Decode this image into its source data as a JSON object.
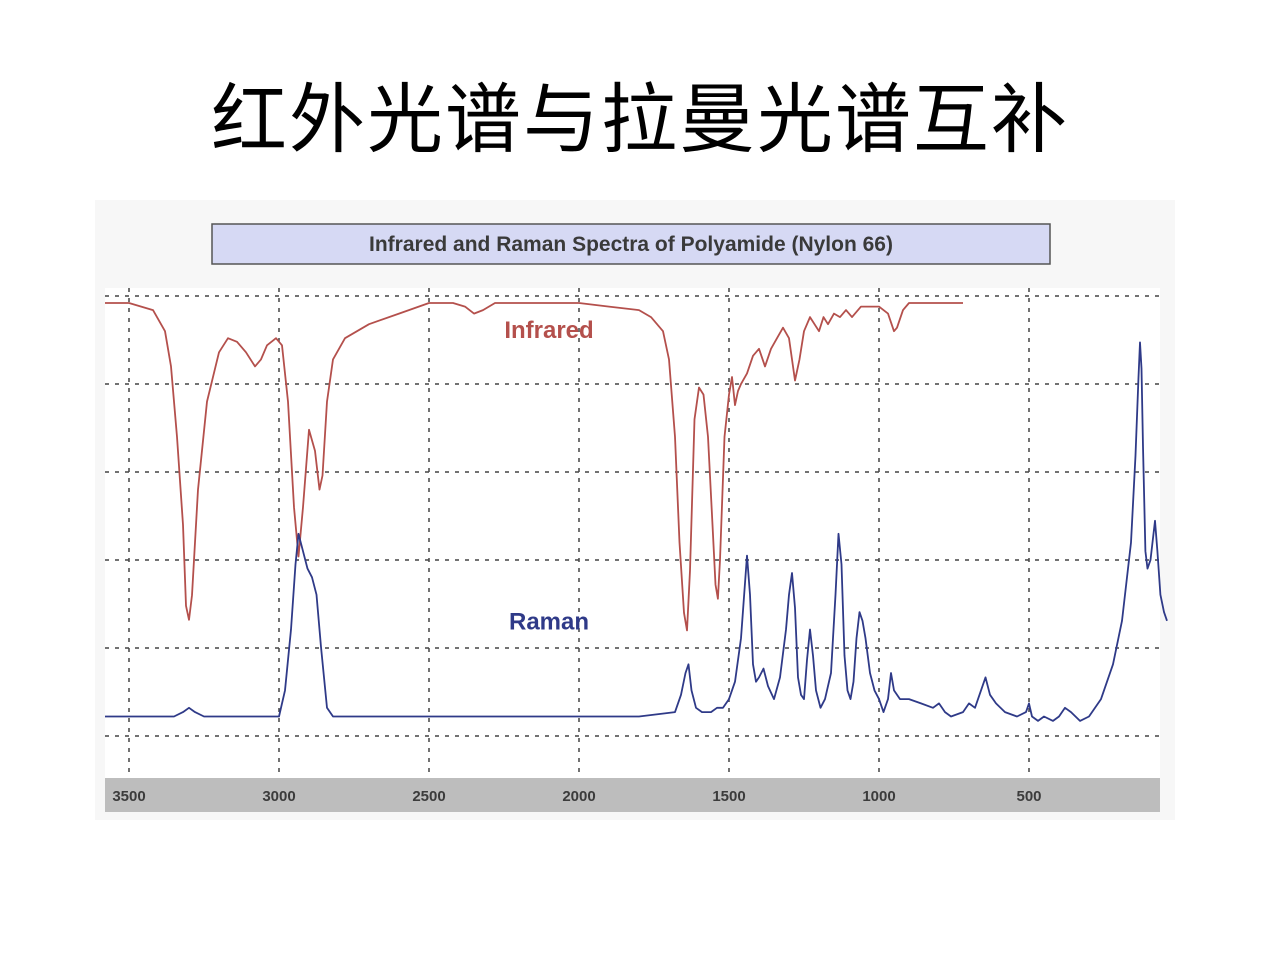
{
  "slide": {
    "title": "红外光谱与拉曼光谱互补"
  },
  "colors": {
    "infrared": "#b4504c",
    "raman": "#2f3a88",
    "title_box_fill": "#d6d9f4",
    "axis_bar": "#bdbdbd",
    "grid": "#444444"
  },
  "chart_data": {
    "type": "line",
    "title": "Infrared and Raman Spectra of Polyamide (Nylon 66)",
    "xlabel": "",
    "ylabel": "",
    "x_axis_reversed": true,
    "xlim": [
      3580,
      40
    ],
    "x_ticks": [
      3500,
      3000,
      2500,
      2000,
      1500,
      1000,
      500
    ],
    "x_tick_labels": [
      "3500",
      "3000",
      "2500",
      "2000",
      "1500",
      "1000",
      "500"
    ],
    "grid": true,
    "grid_style": "dashed",
    "y_relative_scale": [
      0,
      100
    ],
    "series": [
      {
        "name": "Infrared",
        "color": "#b4504c",
        "points": [
          [
            3580,
            98
          ],
          [
            3500,
            98
          ],
          [
            3420,
            96
          ],
          [
            3380,
            90
          ],
          [
            3360,
            80
          ],
          [
            3340,
            60
          ],
          [
            3320,
            35
          ],
          [
            3310,
            12
          ],
          [
            3300,
            8
          ],
          [
            3290,
            15
          ],
          [
            3270,
            45
          ],
          [
            3240,
            70
          ],
          [
            3200,
            84
          ],
          [
            3170,
            88
          ],
          [
            3140,
            87
          ],
          [
            3110,
            84
          ],
          [
            3080,
            80
          ],
          [
            3060,
            82
          ],
          [
            3040,
            86
          ],
          [
            3010,
            88
          ],
          [
            2990,
            86
          ],
          [
            2970,
            70
          ],
          [
            2950,
            40
          ],
          [
            2935,
            26
          ],
          [
            2920,
            40
          ],
          [
            2900,
            62
          ],
          [
            2880,
            56
          ],
          [
            2865,
            45
          ],
          [
            2855,
            49
          ],
          [
            2840,
            70
          ],
          [
            2820,
            82
          ],
          [
            2780,
            88
          ],
          [
            2700,
            92
          ],
          [
            2600,
            95
          ],
          [
            2500,
            98
          ],
          [
            2420,
            98
          ],
          [
            2380,
            97
          ],
          [
            2350,
            95
          ],
          [
            2320,
            96
          ],
          [
            2280,
            98
          ],
          [
            2100,
            98
          ],
          [
            2000,
            98
          ],
          [
            1900,
            97
          ],
          [
            1800,
            96
          ],
          [
            1760,
            94
          ],
          [
            1720,
            90
          ],
          [
            1700,
            82
          ],
          [
            1680,
            60
          ],
          [
            1665,
            30
          ],
          [
            1650,
            10
          ],
          [
            1640,
            5
          ],
          [
            1630,
            22
          ],
          [
            1615,
            65
          ],
          [
            1600,
            74
          ],
          [
            1585,
            72
          ],
          [
            1570,
            60
          ],
          [
            1555,
            35
          ],
          [
            1545,
            18
          ],
          [
            1537,
            14
          ],
          [
            1530,
            25
          ],
          [
            1515,
            60
          ],
          [
            1500,
            72
          ],
          [
            1490,
            77
          ],
          [
            1480,
            69
          ],
          [
            1470,
            73
          ],
          [
            1460,
            75
          ],
          [
            1440,
            78
          ],
          [
            1420,
            83
          ],
          [
            1400,
            85
          ],
          [
            1380,
            80
          ],
          [
            1360,
            85
          ],
          [
            1340,
            88
          ],
          [
            1320,
            91
          ],
          [
            1300,
            88
          ],
          [
            1280,
            76
          ],
          [
            1265,
            82
          ],
          [
            1250,
            90
          ],
          [
            1230,
            94
          ],
          [
            1200,
            90
          ],
          [
            1185,
            94
          ],
          [
            1170,
            92
          ],
          [
            1150,
            95
          ],
          [
            1130,
            94
          ],
          [
            1110,
            96
          ],
          [
            1090,
            94
          ],
          [
            1060,
            97
          ],
          [
            1000,
            97
          ],
          [
            970,
            95
          ],
          [
            950,
            90
          ],
          [
            940,
            91
          ],
          [
            920,
            96
          ],
          [
            900,
            98
          ],
          [
            800,
            98
          ],
          [
            720,
            98
          ]
        ]
      },
      {
        "name": "Raman",
        "color": "#2f3a88",
        "points": [
          [
            3580,
            10
          ],
          [
            3500,
            10
          ],
          [
            3400,
            10
          ],
          [
            3350,
            10
          ],
          [
            3320,
            11
          ],
          [
            3300,
            12
          ],
          [
            3280,
            11
          ],
          [
            3250,
            10
          ],
          [
            3100,
            10
          ],
          [
            3000,
            10
          ],
          [
            2980,
            16
          ],
          [
            2960,
            30
          ],
          [
            2945,
            45
          ],
          [
            2935,
            52
          ],
          [
            2920,
            48
          ],
          [
            2905,
            44
          ],
          [
            2890,
            42
          ],
          [
            2875,
            38
          ],
          [
            2860,
            26
          ],
          [
            2840,
            12
          ],
          [
            2820,
            10
          ],
          [
            2800,
            10
          ],
          [
            2600,
            10
          ],
          [
            2400,
            10
          ],
          [
            2200,
            10
          ],
          [
            2000,
            10
          ],
          [
            1800,
            10
          ],
          [
            1680,
            11
          ],
          [
            1660,
            15
          ],
          [
            1645,
            20
          ],
          [
            1635,
            22
          ],
          [
            1625,
            16
          ],
          [
            1610,
            12
          ],
          [
            1590,
            11
          ],
          [
            1560,
            11
          ],
          [
            1540,
            12
          ],
          [
            1520,
            12
          ],
          [
            1500,
            14
          ],
          [
            1480,
            18
          ],
          [
            1460,
            28
          ],
          [
            1440,
            47
          ],
          [
            1430,
            38
          ],
          [
            1420,
            22
          ],
          [
            1410,
            18
          ],
          [
            1400,
            19
          ],
          [
            1385,
            21
          ],
          [
            1370,
            17
          ],
          [
            1350,
            14
          ],
          [
            1330,
            19
          ],
          [
            1310,
            30
          ],
          [
            1300,
            38
          ],
          [
            1290,
            43
          ],
          [
            1280,
            35
          ],
          [
            1270,
            19
          ],
          [
            1260,
            15
          ],
          [
            1250,
            14
          ],
          [
            1240,
            23
          ],
          [
            1230,
            30
          ],
          [
            1220,
            24
          ],
          [
            1210,
            16
          ],
          [
            1195,
            12
          ],
          [
            1180,
            14
          ],
          [
            1160,
            20
          ],
          [
            1145,
            38
          ],
          [
            1135,
            52
          ],
          [
            1125,
            45
          ],
          [
            1115,
            24
          ],
          [
            1105,
            16
          ],
          [
            1095,
            14
          ],
          [
            1085,
            18
          ],
          [
            1075,
            28
          ],
          [
            1065,
            34
          ],
          [
            1055,
            32
          ],
          [
            1045,
            28
          ],
          [
            1030,
            20
          ],
          [
            1015,
            16
          ],
          [
            1000,
            14
          ],
          [
            985,
            11
          ],
          [
            970,
            14
          ],
          [
            960,
            20
          ],
          [
            950,
            16
          ],
          [
            930,
            14
          ],
          [
            900,
            14
          ],
          [
            860,
            13
          ],
          [
            820,
            12
          ],
          [
            800,
            13
          ],
          [
            780,
            11
          ],
          [
            760,
            10
          ],
          [
            720,
            11
          ],
          [
            700,
            13
          ],
          [
            680,
            12
          ],
          [
            660,
            16
          ],
          [
            645,
            19
          ],
          [
            630,
            15
          ],
          [
            610,
            13
          ],
          [
            580,
            11
          ],
          [
            540,
            10
          ],
          [
            510,
            11
          ],
          [
            500,
            13
          ],
          [
            490,
            10
          ],
          [
            470,
            9
          ],
          [
            450,
            10
          ],
          [
            420,
            9
          ],
          [
            400,
            10
          ],
          [
            380,
            12
          ],
          [
            360,
            11
          ],
          [
            330,
            9
          ],
          [
            300,
            10
          ],
          [
            260,
            14
          ],
          [
            220,
            22
          ],
          [
            190,
            32
          ],
          [
            160,
            50
          ],
          [
            145,
            70
          ],
          [
            135,
            88
          ],
          [
            130,
            96
          ],
          [
            125,
            90
          ],
          [
            120,
            72
          ],
          [
            112,
            48
          ],
          [
            105,
            44
          ],
          [
            95,
            46
          ],
          [
            85,
            52
          ],
          [
            80,
            55
          ],
          [
            72,
            48
          ],
          [
            62,
            38
          ],
          [
            50,
            34
          ],
          [
            40,
            32
          ]
        ]
      }
    ],
    "series_labels": [
      {
        "name": "Infrared",
        "text": "Infrared",
        "at": [
          2000,
          88
        ]
      },
      {
        "name": "Raman",
        "text": "Raman",
        "at": [
          2000,
          30
        ]
      }
    ]
  }
}
